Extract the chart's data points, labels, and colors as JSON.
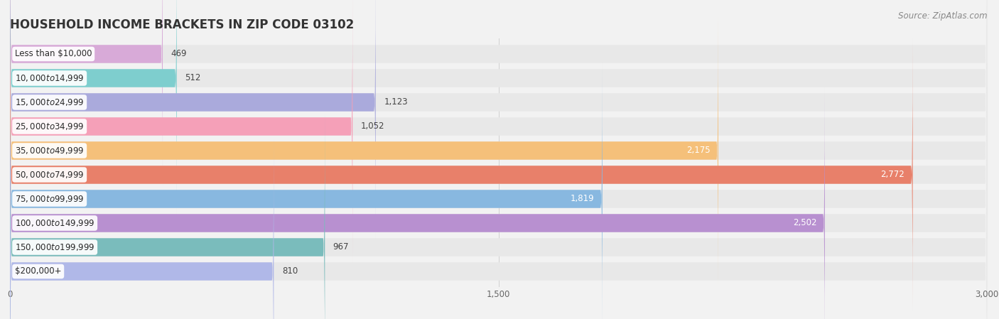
{
  "title": "HOUSEHOLD INCOME BRACKETS IN ZIP CODE 03102",
  "source": "Source: ZipAtlas.com",
  "categories": [
    "Less than $10,000",
    "$10,000 to $14,999",
    "$15,000 to $24,999",
    "$25,000 to $34,999",
    "$35,000 to $49,999",
    "$50,000 to $74,999",
    "$75,000 to $99,999",
    "$100,000 to $149,999",
    "$150,000 to $199,999",
    "$200,000+"
  ],
  "values": [
    469,
    512,
    1123,
    1052,
    2175,
    2772,
    1819,
    2502,
    967,
    810
  ],
  "bar_colors": [
    "#d8aad8",
    "#7ecece",
    "#aaaadc",
    "#f5a0b8",
    "#f5c07a",
    "#e8806a",
    "#88b8e0",
    "#b890d0",
    "#7abcbc",
    "#b0b8e8"
  ],
  "xlim_min": 0,
  "xlim_max": 3000,
  "xticks": [
    0,
    1500,
    3000
  ],
  "background_color": "#f2f2f2",
  "bar_bg_color": "#e8e8e8",
  "title_fontsize": 12,
  "source_fontsize": 8.5,
  "value_fontsize": 8.5,
  "category_fontsize": 8.5,
  "value_threshold": 1300
}
